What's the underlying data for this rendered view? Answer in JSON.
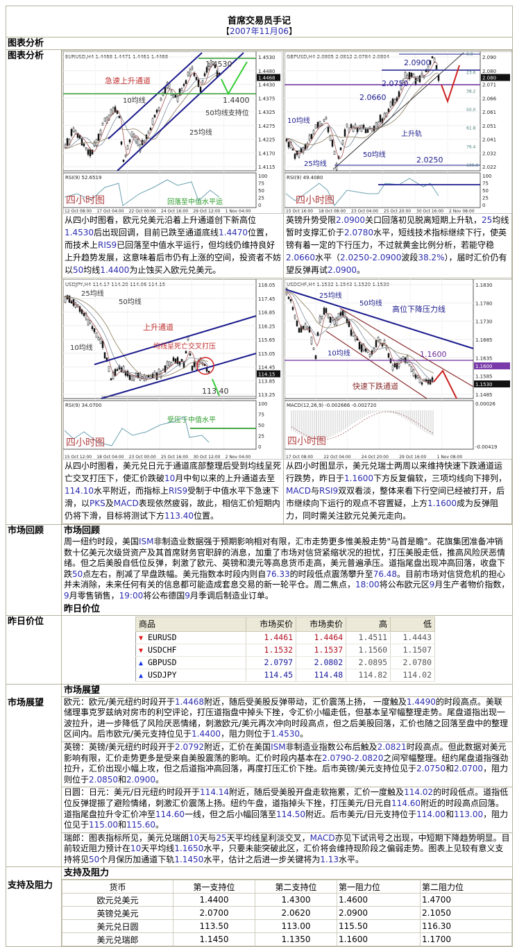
{
  "header": {
    "title": "首席交易员手记",
    "date_open": "【",
    "date": "2007年11月06",
    "date_close": "】"
  },
  "sections": {
    "chart_analysis": "图表分析",
    "chart_analysis_side": "图表分析",
    "market_review": "市场回顾",
    "market_review_side": "市场回顾",
    "yesterday_prices": "昨日价位",
    "yesterday_prices_side": "昨日价位",
    "market_outlook": "市场展望",
    "market_outlook_side": "市场展望",
    "support_resistance": "支持及阻力",
    "support_resistance_side": "支持及阻力"
  },
  "charts": [
    {
      "header": "EURUSD,H4  1.4468 1.4471 1.4461 1.4468",
      "price_ticks": [
        "1.4530",
        "1.4480",
        "1.4430",
        "1.4375",
        "1.4325",
        "1.4275",
        "1.4225",
        "1.4170",
        "1.4115"
      ],
      "current": "1.4468",
      "indicator": "RSI(9) 52.6519",
      "indicator_ticks": [
        "100",
        "75",
        "50",
        "25",
        "0"
      ],
      "dates": [
        "12 Oct 08:00",
        "17 Oct 04:00",
        "22 Oct 00:00",
        "24 Oct 16:00",
        "29 Oct 12:00",
        "1 Nov 04:00"
      ],
      "annotations": [
        "急速上升通道",
        "10均线",
        "25均线",
        "50均线支持位",
        "1.4530",
        "1.4400",
        "回落至中值水平运"
      ],
      "tag": "四小时图",
      "text": "从四小时图看，欧元兑美元沿着上升通道创下新高位1.4530后出现回调，目前已跌至通道底线1.4470位置，而技术上RIS9已回落至中值水平运行，但均线仍维持良好上升趋势发展，这意味着后市仍有上涨的空间，投资者不妨以50均线1.4400为止蚀买入欧元兑美元。"
    },
    {
      "header": "GBPUSD,H4  2.0805 2.0812 2.0784 2.0804",
      "price_ticks": [
        "2.090",
        "2.080",
        "2.071",
        "2.066",
        "2.061",
        "2.051",
        "2.041",
        "2.032",
        "2.022"
      ],
      "current": "2.080",
      "indicator": "RSI(9) 49.4080",
      "indicator_ticks": [
        "100",
        "75",
        "50",
        "25",
        "0"
      ],
      "dates": [
        "15 Oct 16:00",
        "18 Oct 08:00",
        "23 Oct 04:00",
        "25 Oct 20:00",
        "30 Oct 16:00",
        "2 Nov 08:00"
      ],
      "fib": [
        "0.0",
        "23.6",
        "38.2",
        "50.0",
        "61.8",
        "76.4",
        "100.0"
      ],
      "annotations": [
        "2.0900",
        "2.0750",
        "2.0660",
        "10均线",
        "25均线",
        "50均线",
        "上升轨",
        "2.0250"
      ],
      "tag": "四小时图",
      "text": "英镑升势受限2.0900关口回落初见脱离短期上升轨，25均线暂时支撑汇价于2.0780水平，短线技术指标继续下行，使英镑有着一定的下行压力，不过就黄金比例分析，若能守稳2.0660水平（2.0250-2.0900波段38.2%），届时汇价仍有望反弹再试2.0900。"
    },
    {
      "header": "USDJPY,H4  114.17 114.20 114.06 114.15",
      "price_ticks": [
        "118.05",
        "117.45",
        "116.85",
        "116.25",
        "115.65",
        "115.05",
        "114.45",
        "113.85",
        "113.25"
      ],
      "current": "114.15",
      "indicator": "RSI(9) 34.0700",
      "indicator_ticks": [
        "100",
        "75",
        "50",
        "25",
        "0"
      ],
      "dates": [
        "15 Oct 12:00",
        "18 Oct 04:00",
        "23 Oct 00:00",
        "25 Oct 16:00",
        "30 Oct 12:00",
        "2 Nov 04:00"
      ],
      "annotations": [
        "25均线",
        "50均线",
        "上升通道",
        "10均线",
        "均线呈死亡交叉打压",
        "113.40",
        "受压于中值水平"
      ],
      "tag": "四小时图",
      "text": "从四小时图看，美元兑日元于通道底部整理后受到均线呈死亡交叉打压下，使汇价跌破10月中旬以来的上升通道去至114.10水平附近，而指标上RIS9受制于中值水平下急速下滑，以PKS及MACD表现依然疲弱，故此，相信汇价短期内仍将下滑，目标将测试下方113.40位置。"
    },
    {
      "header": "USDCHF,H4  1.1532 1.1543 1.1520 1.1530",
      "price_ticks": [
        "1.1830",
        "1.1780",
        "1.1730",
        "1.1685",
        "1.1635",
        "1.1585",
        "1.1485"
      ],
      "current": "1.1530",
      "marked": "1.1600",
      "indicator": "MACD(12,26,9)  -0.002666  -0.002720",
      "indicator_ticks": [
        "0.00026",
        "-0.00419"
      ],
      "dates": [
        "17 Oct 08:00",
        "22 Oct 04:00",
        "24 Oct 20:00",
        "29 Oct 16:00",
        "1 Nov 08:00"
      ],
      "annotations": [
        "25均线",
        "50均线",
        "高位下降压力线",
        "10均线",
        "1.1600",
        "快速下跌通道"
      ],
      "tag": "四小时图",
      "text": "从四小时图显示，美元兑瑞士两周以来维持快速下跌通道运行跌势，昨日于1.1600下方反复偏软，三项均线向下排列，MACD与RSI9双双看淡，整体来看下行空间已经被打开，后市继续向下运行的观点不容置疑，上方1.1600成为反弹阻力，同时需关注欧元兑美元走向。"
    }
  ],
  "market_review": "周一纽约时段，美国ISM非制造业数据强于预期影响相对有限，汇市走势更多惟美股走势\"马首是瞻\"。花旗集团准备冲销数十亿美元次级贷资产及其首席财务官职辞的消息，加重了市场对信贷紧缩状况的担忧，打压美股走低，推高风险厌恶情绪。但之后美股自低位反弹，刺激了欧元、英镑和澳元等高息货币走高，美元普遍承压。道指尾盘出现冲高回落，收盘下跌50点左右，削减了早盘跌幅。美元指数本时段内则自76.33的时段低点震荡攀升至76.48。目前市场对信贷危机的担心并未消除，未来任何有关的信息都可能造成套息交易的新一轮平仓。周二焦点，18:00将公布欧元区9月生产者物价指数，9月零售销售，19:00将公布德国9月季调后制造业订单。",
  "price_table": {
    "columns": [
      "商品",
      "市场买价",
      "市场卖价",
      "高",
      "低"
    ],
    "rows": [
      {
        "symbol": "EURUSD",
        "direction": "down",
        "bid": "1.4461",
        "ask": "1.4464",
        "high": "1.4511",
        "low": "1.4443"
      },
      {
        "symbol": "USDCHF",
        "direction": "down",
        "bid": "1.1532",
        "ask": "1.1537",
        "high": "1.1560",
        "low": "1.1507"
      },
      {
        "symbol": "GBPUSD",
        "direction": "up",
        "bid": "2.0797",
        "ask": "2.0802",
        "high": "2.0895",
        "low": "2.0780"
      },
      {
        "symbol": "USDJPY",
        "direction": "up",
        "bid": "114.45",
        "ask": "114.48",
        "high": "114.82",
        "low": "114.02"
      }
    ],
    "colors": {
      "down": "#e01010",
      "up": "#1030e0",
      "down_text": "#b01020",
      "up_text": "#1a1a9a"
    }
  },
  "outlook": [
    "欧元：欧元/美元纽约时段开于1.4468附近，随后受美股反弹带动，汇价震荡上扬， 一度触及1.4490的时段高点。美联储理事克罗兹纳对房市的利空评论，打压道指盘中掉头下挫，令汇价小幅走低，但基本呈窄幅整理走势。尾盘道指出现一波拉升，进一步降低了风险厌恶情绪，刺激欧元/美元再次冲向时段高点，但之后美股回落，汇价也随之回落至盘中的整理区间内。后市欧元/美元支持位见于1.4400，阻力则位于1.4530。",
    "英镑：英镑/美元纽约时段开于2.0792附近，汇价在美国ISM非制造业指数公布后触及2.0821时段高点。但此数据对美元影响有限，汇价走势更多是受来自美股震荡的影响。汇价时段内基本在2.0790-2.0820之间窄幅整理。纽约尾盘道指强劲拉升，汇价出现小幅上攻，但之后道指冲高回落，再度打压汇价下挫。后市英镑/美元支持位见于2.0750和2.0700，阻力则位于2.0850和2.0900。",
    "日圆：日元：美元/日元纽约时段开于114.14附近，随后受美股开盘走软拖累，汇价一度触及114.02的时段低点。道指低位反弹提振了避险情绪，刺激汇价震荡上扬。纽约午盘，道指掉头下挫，打压美元/日元自114.60附近的时段高点回落。道指尾盘拉升令汇价冲至114.60一线，但之后小幅回落至114.50附近。后市美元/日元支持位于114.00和113.00，阻力位见于115.00和115.60。",
    "瑞郎：图表指标所见，美元兑瑞朗10天与25天平均线呈利淡交叉，MACD亦见下试讯号之出现，中短期下降趋势明显。目前较近阻力预计在10天平均线1.1650水平，只要未能突破此区，汇价将会维持现阶段之偏弱走势。图表上见较有意义支持将见50个月保历加通道下轨1.1450水平，估计之后进一步关键将为1.13水平。"
  ],
  "support_table": {
    "columns": [
      "货币",
      "第一支持位",
      "第二支持位",
      "第一阻力位",
      "第二阻力位"
    ],
    "rows": [
      [
        "欧元兑美元",
        "1.4400",
        "1.4300",
        "1.4600",
        "1.4700"
      ],
      [
        "英镑兑美元",
        "2.0700",
        "2.0620",
        "2.0900",
        "2.1050"
      ],
      [
        "美元兑日圆",
        "113.50",
        "113.00",
        "115.50",
        "116.30"
      ],
      [
        "美元兑瑞郎",
        "1.1450",
        "1.1350",
        "1.1600",
        "1.1700"
      ]
    ]
  }
}
